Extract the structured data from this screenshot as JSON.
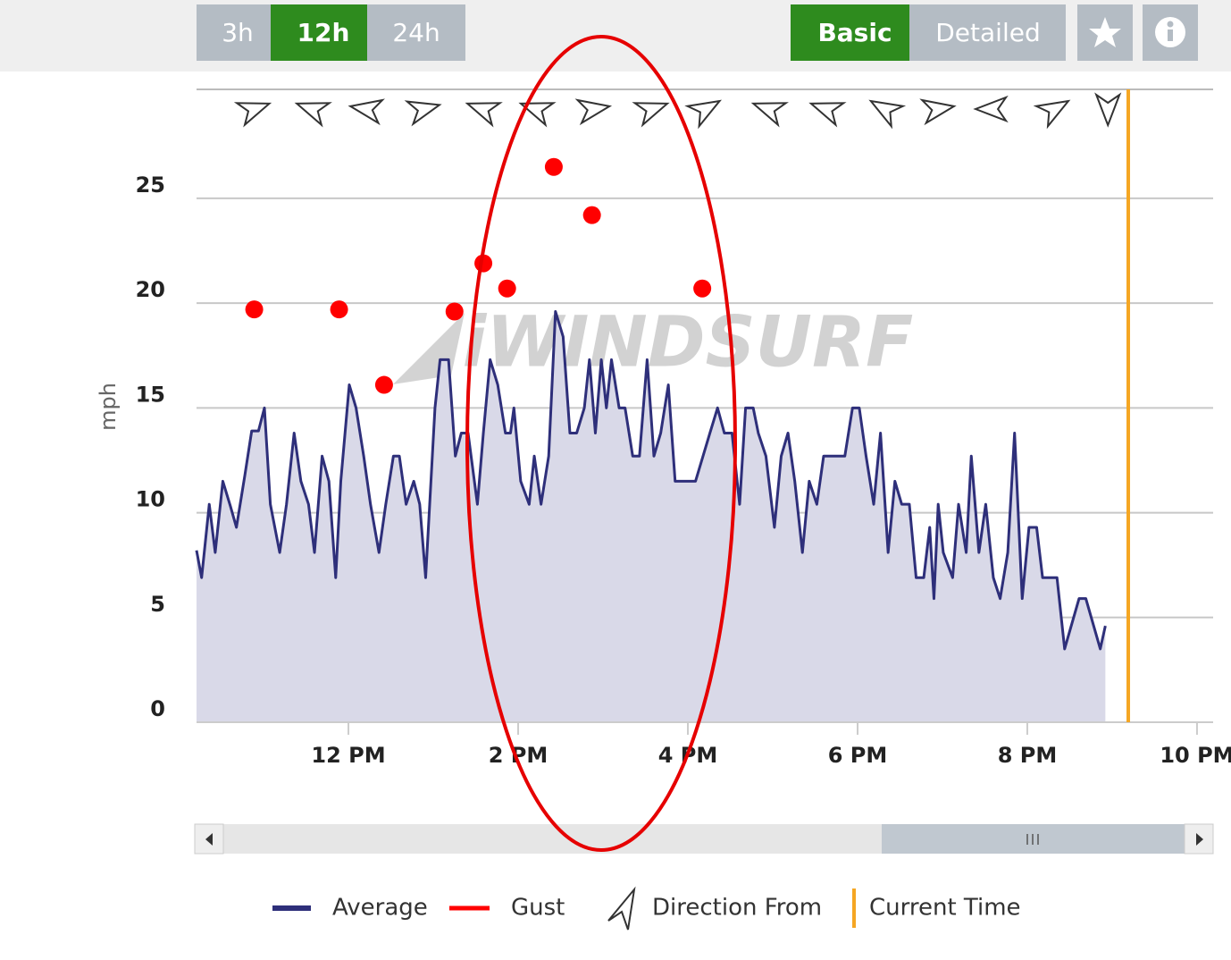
{
  "controls": {
    "ranges": [
      "3h",
      "12h",
      "24h"
    ],
    "views": [
      "Basic",
      "Detailed"
    ]
  },
  "chart_data": {
    "type": "line",
    "y_label": "mph",
    "watermark": "iWINDSURF",
    "xlim": [
      10.21,
      22.19
    ],
    "ylim": [
      0,
      30.2
    ],
    "yticks": [
      0,
      5,
      10,
      15,
      20,
      25
    ],
    "xticks": [
      {
        "value": 12,
        "label": "12 PM"
      },
      {
        "value": 14,
        "label": "2 PM"
      },
      {
        "value": 16,
        "label": "4 PM"
      },
      {
        "value": 18,
        "label": "6 PM"
      },
      {
        "value": 20,
        "label": "8 PM"
      },
      {
        "value": 22,
        "label": "10 PM"
      }
    ],
    "grid": true,
    "series": [
      {
        "name": "Average",
        "color": "#2e2f7a",
        "fill": "#d9d9e8",
        "x": [
          10.21,
          10.27,
          10.36,
          10.43,
          10.52,
          10.61,
          10.68,
          10.78,
          10.86,
          10.94,
          11.01,
          11.08,
          11.19,
          11.27,
          11.36,
          11.44,
          11.53,
          11.6,
          11.69,
          11.77,
          11.85,
          11.91,
          12.01,
          12.09,
          12.18,
          12.26,
          12.36,
          12.44,
          12.53,
          12.6,
          12.68,
          12.77,
          12.84,
          12.91,
          13.02,
          13.08,
          13.18,
          13.26,
          13.33,
          13.41,
          13.52,
          13.59,
          13.67,
          13.76,
          13.85,
          13.91,
          13.95,
          14.03,
          14.13,
          14.19,
          14.27,
          14.36,
          14.44,
          14.53,
          14.61,
          14.69,
          14.78,
          14.84,
          14.91,
          14.98,
          15.04,
          15.1,
          15.19,
          15.26,
          15.35,
          15.43,
          15.52,
          15.6,
          15.68,
          15.77,
          15.85,
          15.94,
          16.01,
          16.09,
          16.26,
          16.35,
          16.43,
          16.52,
          16.61,
          16.68,
          16.77,
          16.83,
          16.92,
          17.02,
          17.1,
          17.18,
          17.26,
          17.35,
          17.43,
          17.52,
          17.6,
          17.77,
          17.85,
          17.94,
          18.02,
          18.1,
          18.19,
          18.27,
          18.36,
          18.44,
          18.52,
          18.61,
          18.69,
          18.78,
          18.85,
          18.9,
          18.95,
          19.01,
          19.12,
          19.19,
          19.28,
          19.34,
          19.43,
          19.51,
          19.6,
          19.68,
          19.77,
          19.85,
          19.94,
          20.02,
          20.11,
          20.18,
          20.35,
          20.44,
          20.61,
          20.69,
          20.86,
          20.92
        ],
        "values": [
          8.2,
          6.9,
          10.4,
          8.1,
          11.5,
          10.3,
          9.3,
          11.8,
          13.9,
          13.9,
          15.0,
          10.4,
          8.1,
          10.4,
          13.8,
          11.5,
          10.4,
          8.1,
          12.7,
          11.5,
          6.9,
          11.5,
          16.1,
          15.0,
          12.7,
          10.4,
          8.1,
          10.4,
          12.7,
          12.7,
          10.4,
          11.5,
          10.4,
          6.9,
          15.0,
          17.3,
          17.3,
          12.7,
          13.8,
          13.8,
          10.4,
          13.8,
          17.3,
          16.1,
          13.8,
          13.8,
          15.0,
          11.5,
          10.4,
          12.7,
          10.4,
          12.7,
          19.6,
          18.4,
          13.8,
          13.8,
          15.0,
          17.3,
          13.8,
          17.3,
          15.0,
          17.3,
          15.0,
          15.0,
          12.7,
          12.7,
          17.3,
          12.7,
          13.8,
          16.1,
          11.5,
          11.5,
          11.5,
          11.5,
          13.8,
          15.0,
          13.8,
          13.8,
          10.4,
          15.0,
          15.0,
          13.8,
          12.7,
          9.3,
          12.7,
          13.8,
          11.5,
          8.1,
          11.5,
          10.4,
          12.7,
          12.7,
          12.7,
          15.0,
          15.0,
          12.7,
          10.4,
          13.8,
          8.1,
          11.5,
          10.4,
          10.4,
          6.9,
          6.9,
          9.3,
          5.9,
          10.4,
          8.1,
          6.9,
          10.4,
          8.1,
          12.7,
          8.1,
          10.4,
          6.9,
          5.9,
          8.1,
          13.8,
          5.9,
          9.3,
          9.3,
          6.9,
          6.9,
          3.5,
          5.9,
          5.9,
          3.5,
          4.6
        ]
      },
      {
        "name": "Gust",
        "color": "#ff0000",
        "x": [
          10.89,
          11.89,
          12.42,
          13.25,
          13.59,
          13.87,
          14.42,
          14.87,
          16.17
        ],
        "values": [
          19.7,
          19.7,
          16.1,
          19.6,
          21.9,
          20.7,
          26.5,
          24.2,
          20.7
        ]
      }
    ],
    "direction": {
      "name": "Direction From",
      "x": [
        10.89,
        11.57,
        12.21,
        12.89,
        13.58,
        14.21,
        14.89,
        15.58,
        16.21,
        16.95,
        17.63,
        18.32,
        18.95,
        19.58,
        20.32,
        20.95
      ],
      "values": [
        -20,
        200,
        190,
        -15,
        200,
        200,
        -10,
        -20,
        -30,
        200,
        200,
        210,
        -10,
        180,
        -30,
        90
      ]
    },
    "current_time": {
      "name": "Current Time",
      "value": 21.19,
      "color": "#f5a623"
    }
  }
}
